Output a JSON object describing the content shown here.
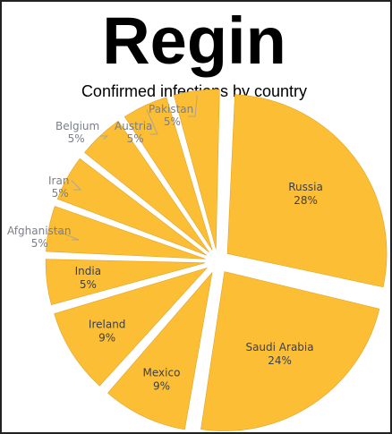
{
  "title": "Regin",
  "subtitle": "Confirmed infections by country",
  "colors": {
    "slice": "#fbbe35",
    "slice_edge": "#e3a423",
    "label_inside": "#3b3f4a",
    "label_outside": "#7a7f88",
    "leader": "#9aa0a8"
  },
  "chart_data": {
    "type": "pie",
    "style": "exploded",
    "slices": [
      {
        "name": "Russia",
        "value": 28,
        "label": "28%",
        "label_position": "inside"
      },
      {
        "name": "Saudi Arabia",
        "value": 24,
        "label": "24%",
        "label_position": "inside"
      },
      {
        "name": "Mexico",
        "value": 9,
        "label": "9%",
        "label_position": "inside"
      },
      {
        "name": "Ireland",
        "value": 9,
        "label": "9%",
        "label_position": "inside"
      },
      {
        "name": "India",
        "value": 5,
        "label": "5%",
        "label_position": "inside"
      },
      {
        "name": "Afghanistan",
        "value": 5,
        "label": "5%",
        "label_position": "outside"
      },
      {
        "name": "Iran",
        "value": 5,
        "label": "5%",
        "label_position": "outside"
      },
      {
        "name": "Belgium",
        "value": 5,
        "label": "5%",
        "label_position": "outside"
      },
      {
        "name": "Austria",
        "value": 5,
        "label": "5%",
        "label_position": "outside"
      },
      {
        "name": "Pakistan",
        "value": 5,
        "label": "5%",
        "label_position": "outside"
      }
    ]
  }
}
